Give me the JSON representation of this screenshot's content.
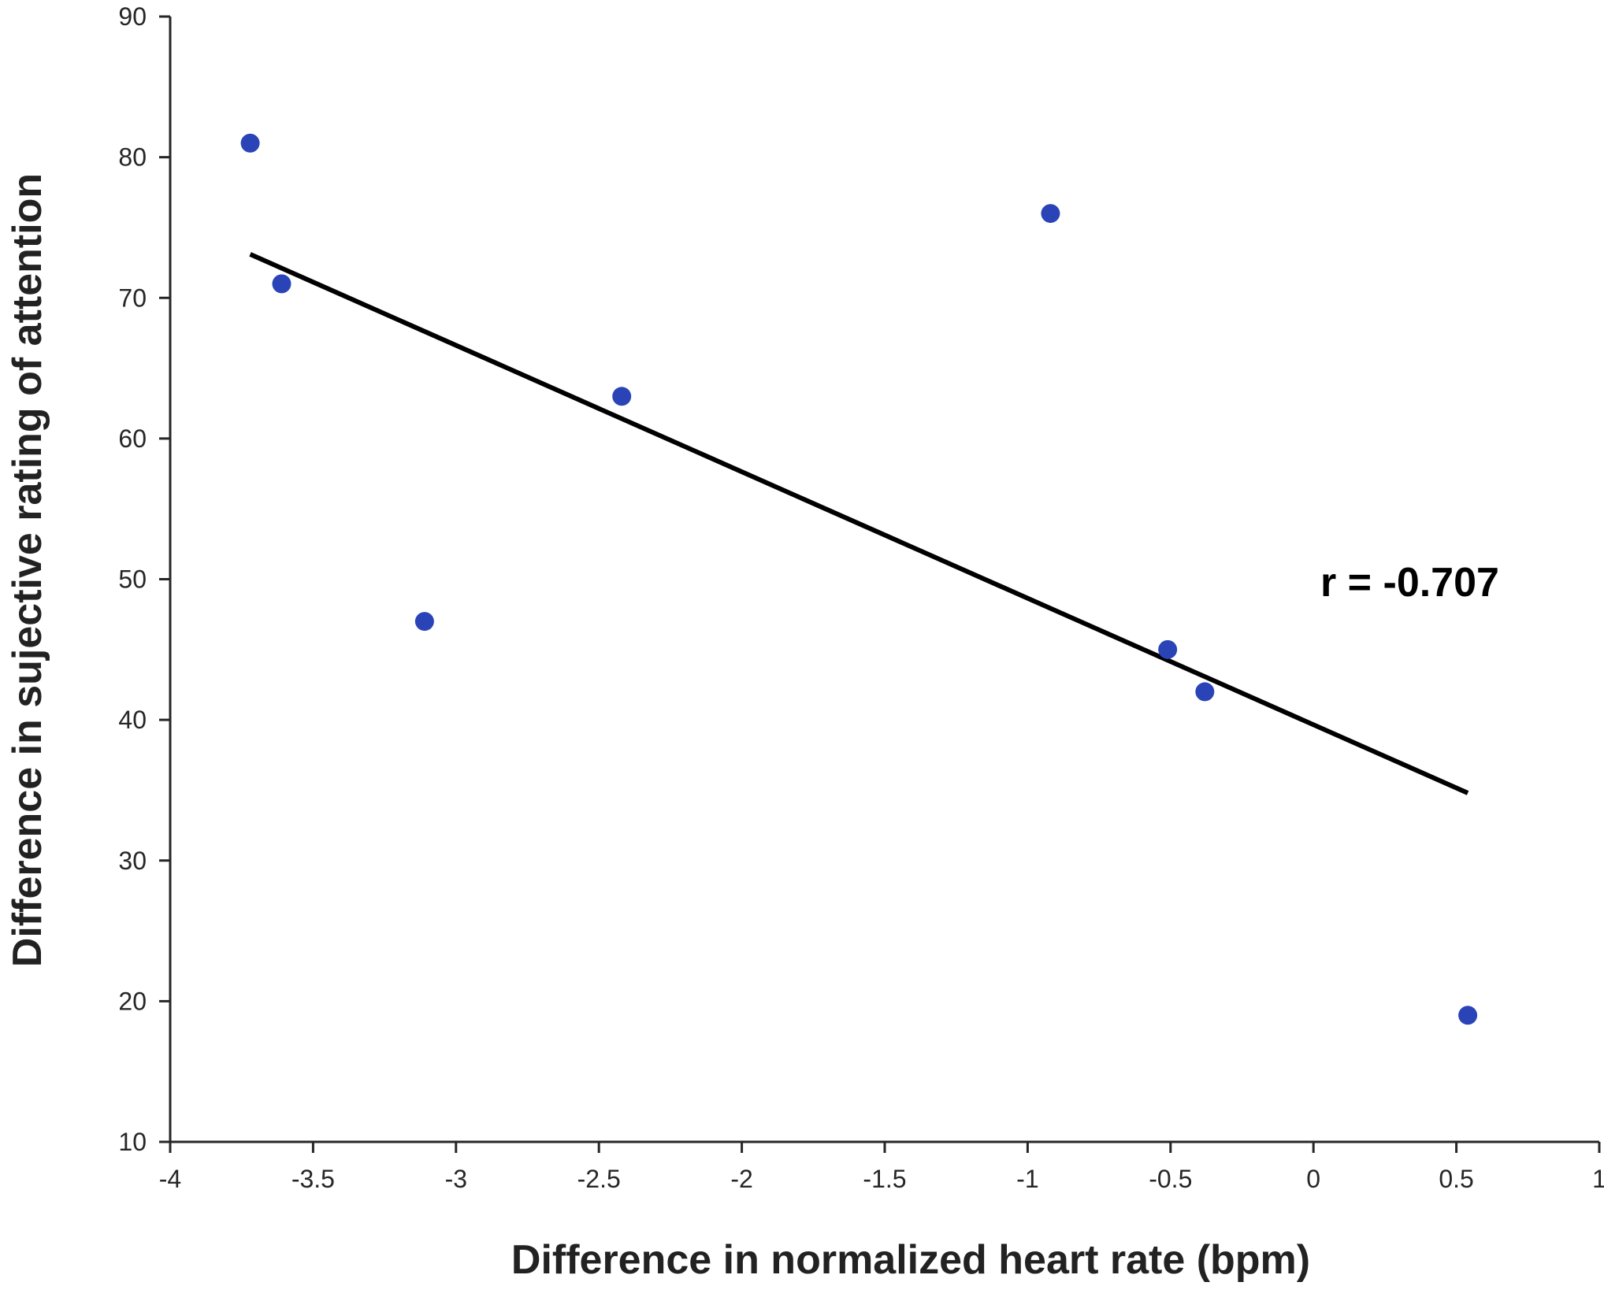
{
  "chart_data": {
    "type": "scatter",
    "title": "",
    "xlabel": "Difference in normalized heart rate (bpm)",
    "ylabel": "Difference in sujective rating of attention",
    "xlim": [
      -4,
      1
    ],
    "ylim": [
      10,
      90
    ],
    "x_ticks": [
      -4,
      -3.5,
      -3,
      -2.5,
      -2,
      -1.5,
      -1,
      -0.5,
      0,
      0.5,
      1
    ],
    "x_tick_labels": [
      "-4",
      "-3.5",
      "-3",
      "-2.5",
      "-2",
      "-1.5",
      "-1",
      "-0.5",
      "0",
      "0.5",
      "1"
    ],
    "y_ticks": [
      10,
      20,
      30,
      40,
      50,
      60,
      70,
      80,
      90
    ],
    "y_tick_labels": [
      "10",
      "20",
      "30",
      "40",
      "50",
      "60",
      "70",
      "80",
      "90"
    ],
    "grid": false,
    "points": [
      {
        "x": -3.72,
        "y": 81
      },
      {
        "x": -3.61,
        "y": 71
      },
      {
        "x": -3.11,
        "y": 47
      },
      {
        "x": -2.42,
        "y": 63
      },
      {
        "x": -0.92,
        "y": 76
      },
      {
        "x": -0.51,
        "y": 45
      },
      {
        "x": -0.38,
        "y": 42
      },
      {
        "x": 0.54,
        "y": 19
      }
    ],
    "point_color": "#2a44b8",
    "fit_line": {
      "x": [
        -3.72,
        0.54
      ],
      "y": [
        73.1,
        34.8
      ],
      "color": "#000000"
    },
    "annotation": "r = -0.707"
  }
}
